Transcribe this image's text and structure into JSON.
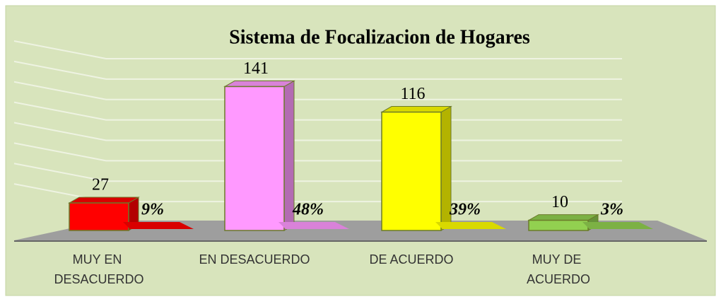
{
  "chart_data": {
    "type": "bar3d",
    "title": "Sistema de Focalizacion de Hogares",
    "categories": [
      "MUY EN DESACUERDO",
      "EN DESACUERDO",
      "DE ACUERDO",
      "MUY DE ACUERDO"
    ],
    "colors": [
      "#ff0000",
      "#ff99ff",
      "#ffff00",
      "#92d050"
    ],
    "series": [
      {
        "values": [
          27,
          141,
          116,
          10
        ]
      },
      {
        "values": [
          9,
          48,
          39,
          3
        ],
        "value_labels": [
          "9%",
          "48%",
          "39%",
          "3%"
        ]
      }
    ],
    "ylim": [
      0,
      160
    ],
    "yticks": [
      0,
      20,
      40,
      60,
      80,
      100,
      120,
      140,
      160
    ],
    "grid": true
  }
}
